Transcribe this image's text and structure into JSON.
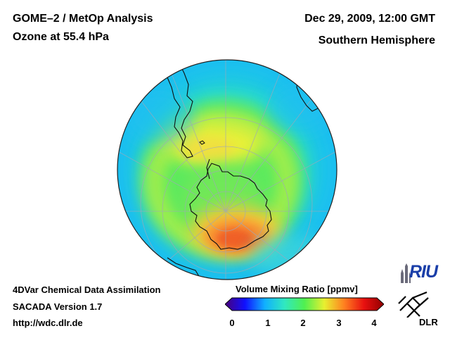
{
  "header": {
    "title": "GOME–2 / MetOp Analysis",
    "subtitle": "Ozone at 55.4 hPa",
    "datetime": "Dec 29, 2009, 12:00 GMT",
    "hemisphere": "Southern Hemisphere"
  },
  "footer": {
    "line1": "4DVar Chemical Data Assimilation",
    "line2": "SACADA Version 1.7",
    "line3": "http://wdc.dlr.de"
  },
  "colorbar": {
    "title": "Volume Mixing Ratio [ppmv]",
    "ticks": [
      "0",
      "1",
      "2",
      "3",
      "4"
    ],
    "min": 0,
    "max": 4,
    "colors": [
      "#4a007a",
      "#1010ff",
      "#10b0ff",
      "#30e8c0",
      "#50f050",
      "#e8f030",
      "#ff8020",
      "#e81010",
      "#900000"
    ]
  },
  "logos": {
    "riu": "RIU",
    "dlr": "DLR"
  },
  "map": {
    "projection": "orthographic",
    "center": "South Pole",
    "field": "ozone volume mixing ratio"
  }
}
